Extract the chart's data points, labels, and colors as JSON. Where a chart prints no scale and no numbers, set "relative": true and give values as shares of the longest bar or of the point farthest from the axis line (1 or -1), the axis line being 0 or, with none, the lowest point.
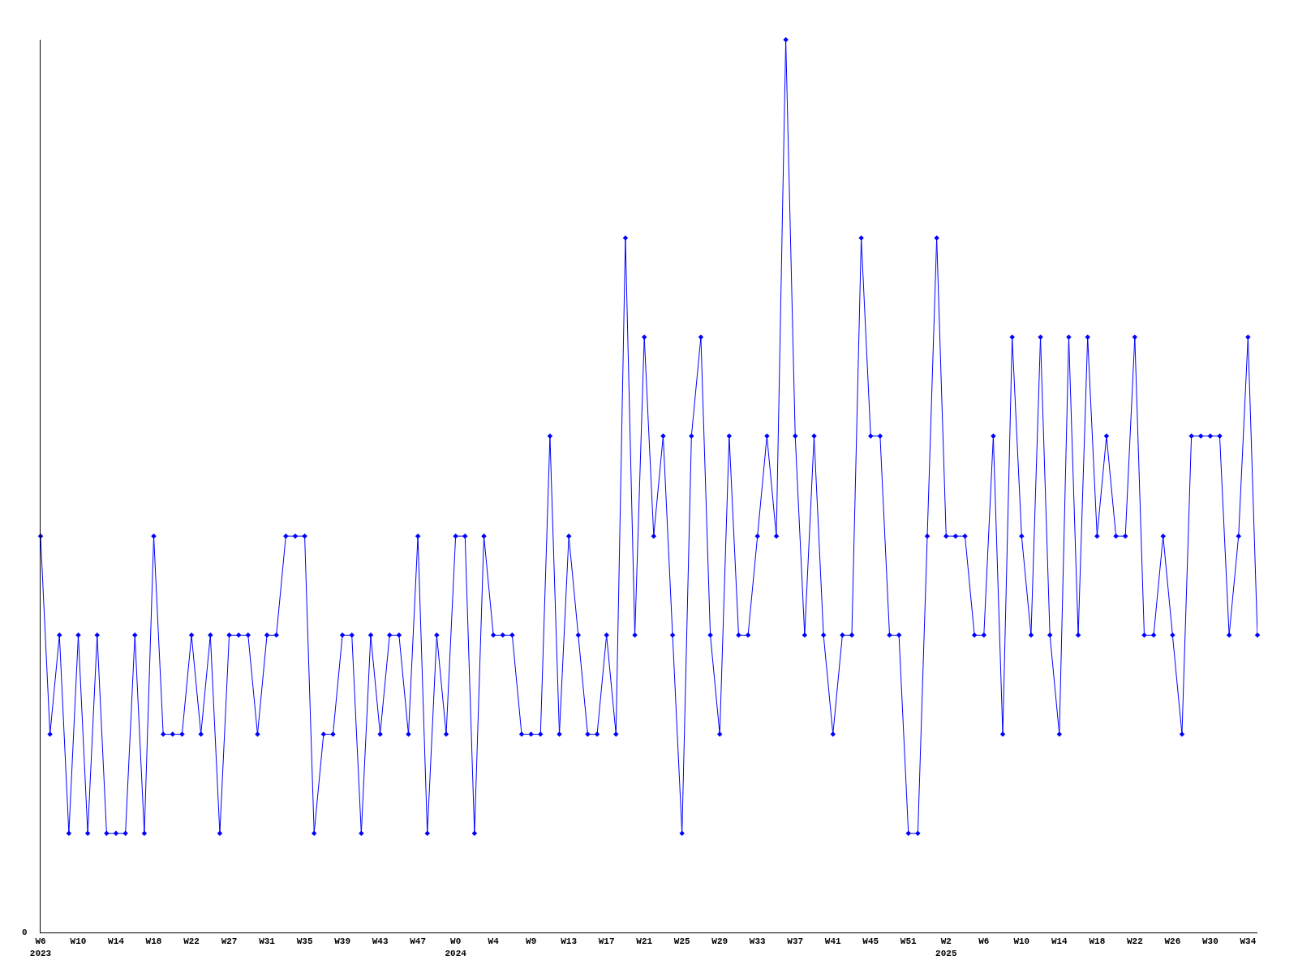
{
  "chart_data": {
    "type": "line",
    "relative": true,
    "marker": "diamond",
    "line_style": "solid",
    "annotations": [
      "0"
    ],
    "categories": [
      "W6\n2023",
      null,
      null,
      null,
      "W10",
      null,
      null,
      null,
      "W14",
      null,
      null,
      null,
      "W18",
      null,
      null,
      null,
      "W22",
      null,
      null,
      null,
      "W27",
      null,
      null,
      null,
      "W31",
      null,
      null,
      null,
      "W35",
      null,
      null,
      null,
      "W39",
      null,
      null,
      null,
      "W43",
      null,
      null,
      null,
      "W47",
      null,
      null,
      null,
      "W0\n2024",
      null,
      null,
      null,
      "W4",
      null,
      null,
      null,
      "W9",
      null,
      null,
      null,
      "W13",
      null,
      null,
      null,
      "W17",
      null,
      null,
      null,
      "W21",
      null,
      null,
      null,
      "W25",
      null,
      null,
      null,
      "W29",
      null,
      null,
      null,
      "W33",
      null,
      null,
      null,
      "W37",
      null,
      null,
      null,
      "W41",
      null,
      null,
      null,
      "W45",
      null,
      null,
      null,
      "W51",
      null,
      null,
      null,
      "W2\n2025",
      null,
      null,
      null,
      "W6",
      null,
      null,
      null,
      "W10",
      null,
      null,
      null,
      "W14",
      null,
      null,
      null,
      "W18",
      null,
      null,
      null,
      "W22",
      null,
      null,
      null,
      "W26",
      null,
      null,
      null,
      "W30",
      null,
      null,
      null,
      "W34",
      null
    ],
    "series": [
      {
        "color": "#0000ff",
        "values": [
          0.444,
          0.222,
          0.333,
          0.111,
          0.333,
          0.111,
          0.333,
          0.111,
          0.111,
          0.111,
          0.333,
          0.111,
          0.444,
          0.222,
          0.222,
          0.222,
          0.333,
          0.222,
          0.333,
          0.111,
          0.333,
          0.333,
          0.333,
          0.222,
          0.333,
          0.333,
          0.444,
          0.444,
          0.444,
          0.111,
          0.222,
          0.222,
          0.333,
          0.333,
          0.111,
          0.333,
          0.222,
          0.333,
          0.333,
          0.222,
          0.444,
          0.111,
          0.333,
          0.222,
          0.444,
          0.444,
          0.111,
          0.444,
          0.333,
          0.333,
          0.333,
          0.222,
          0.222,
          0.222,
          0.556,
          0.222,
          0.444,
          0.333,
          0.222,
          0.222,
          0.333,
          0.222,
          0.778,
          0.333,
          0.667,
          0.444,
          0.556,
          0.333,
          0.111,
          0.556,
          0.667,
          0.333,
          0.222,
          0.556,
          0.333,
          0.333,
          0.444,
          0.556,
          0.444,
          1,
          0.556,
          0.333,
          0.556,
          0.333,
          0.222,
          0.333,
          0.333,
          0.778,
          0.556,
          0.556,
          0.333,
          0.333,
          0.111,
          0.111,
          0.444,
          0.778,
          0.444,
          0.444,
          0.444,
          0.333,
          0.333,
          0.556,
          0.222,
          0.667,
          0.444,
          0.333,
          0.667,
          0.333,
          0.222,
          0.667,
          0.333,
          0.667,
          0.444,
          0.556,
          0.444,
          0.444,
          0.667,
          0.333,
          0.333,
          0.444,
          0.333,
          0.222,
          0.556,
          0.556,
          0.556,
          0.556,
          0.333,
          0.444,
          0.667,
          0.333
        ]
      }
    ]
  }
}
